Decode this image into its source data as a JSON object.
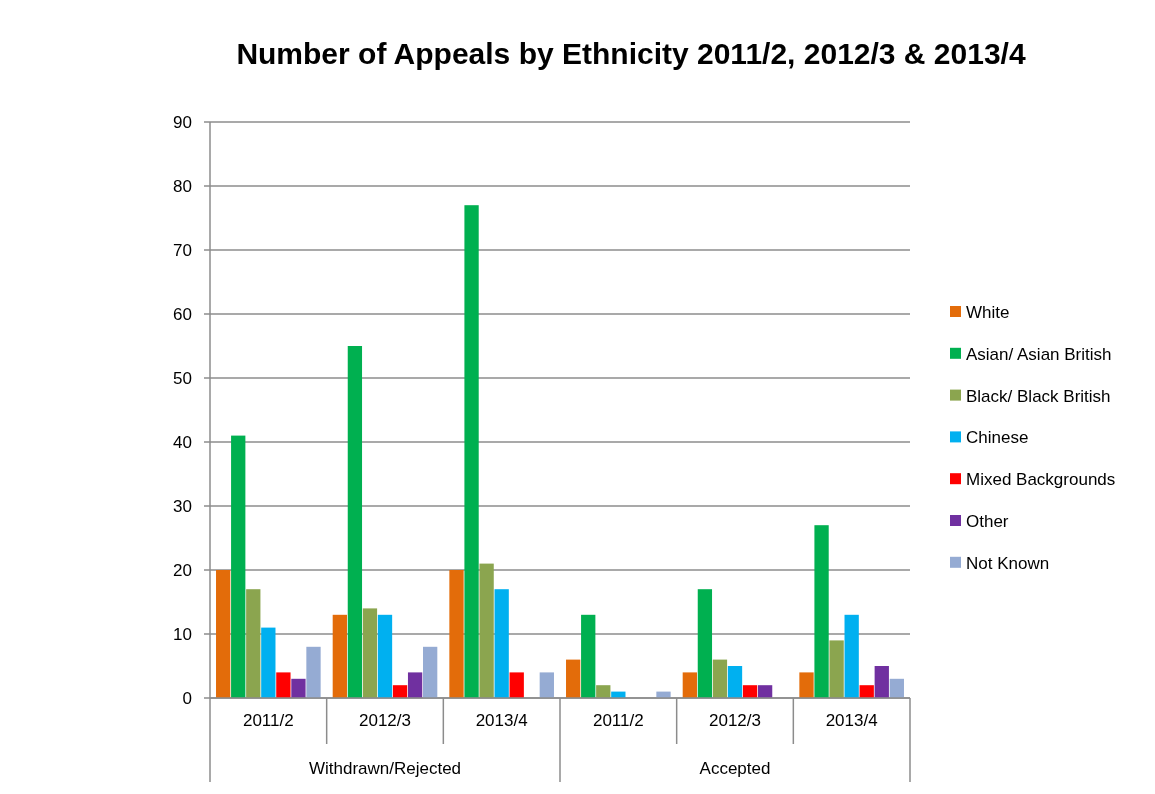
{
  "chart_data": {
    "type": "bar",
    "title": "Number of Appeals by Ethnicity 2011/2, 2012/3 & 2013/4",
    "categories": [
      "2011/2",
      "2012/3",
      "2013/4",
      "2011/2",
      "2012/3",
      "2013/4"
    ],
    "annotations": [
      "Withdrawn/Rejected",
      "Accepted"
    ],
    "series": [
      {
        "name": "White",
        "color": "#e36c0a",
        "values": [
          20,
          13,
          20,
          6,
          4,
          4
        ]
      },
      {
        "name": "Asian/ Asian British",
        "color": "#00b050",
        "values": [
          41,
          55,
          77,
          13,
          17,
          27
        ]
      },
      {
        "name": "Black/ Black British",
        "color": "#8ba54f",
        "values": [
          17,
          14,
          21,
          2,
          6,
          9
        ]
      },
      {
        "name": "Chinese",
        "color": "#00b0f0",
        "values": [
          11,
          13,
          17,
          1,
          5,
          13
        ]
      },
      {
        "name": "Mixed Backgrounds",
        "color": "#ff0000",
        "values": [
          4,
          2,
          4,
          0,
          2,
          2
        ]
      },
      {
        "name": "Other",
        "color": "#7030a0",
        "values": [
          3,
          4,
          0,
          0,
          2,
          5
        ]
      },
      {
        "name": "Not Known",
        "color": "#95abd3",
        "values": [
          8,
          8,
          4,
          1,
          0,
          3
        ]
      }
    ],
    "ylim": [
      0,
      90
    ],
    "yticks": [
      0,
      10,
      20,
      30,
      40,
      50,
      60,
      70,
      80,
      90
    ],
    "grid": "y",
    "legend": "right"
  }
}
